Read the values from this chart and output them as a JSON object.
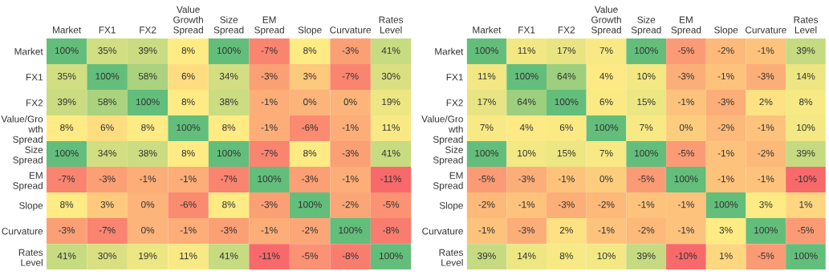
{
  "chart_data": [
    {
      "type": "heatmap",
      "categories": [
        "Market",
        "FX1",
        "FX2",
        "Value\nGrowth\nSpread",
        "Size\nSpread",
        "EM\nSpread",
        "Slope",
        "Curvature",
        "Rates\nLevel"
      ],
      "y_categories": [
        "Market",
        "FX1",
        "FX2",
        "Value/Gro\nwth\nSpread",
        "Size\nSpread",
        "EM\nSpread",
        "Slope",
        "Curvature",
        "Rates\nLevel"
      ],
      "cells": [
        [
          100,
          35,
          39,
          8,
          100,
          -7,
          8,
          -3,
          41
        ],
        [
          35,
          100,
          58,
          6,
          34,
          -3,
          3,
          -7,
          30
        ],
        [
          39,
          58,
          100,
          8,
          38,
          -1,
          0,
          0,
          19
        ],
        [
          8,
          6,
          8,
          100,
          8,
          -1,
          -6,
          -1,
          11
        ],
        [
          100,
          34,
          38,
          8,
          100,
          -7,
          8,
          -3,
          41
        ],
        [
          -7,
          -3,
          -1,
          -1,
          -7,
          100,
          -3,
          -1,
          -11
        ],
        [
          8,
          3,
          0,
          -6,
          8,
          -3,
          100,
          -2,
          -5
        ],
        [
          -3,
          -7,
          0,
          -1,
          -3,
          -1,
          -2,
          100,
          -8
        ],
        [
          41,
          30,
          19,
          11,
          41,
          -11,
          -5,
          -8,
          100
        ]
      ],
      "cell_labels": [
        [
          "100%",
          "35%",
          "39%",
          "8%",
          "100%",
          "-7%",
          "8%",
          "-3%",
          "41%"
        ],
        [
          "35%",
          "100%",
          "58%",
          "6%",
          "34%",
          "-3%",
          "3%",
          "-7%",
          "30%"
        ],
        [
          "39%",
          "58%",
          "100%",
          "8%",
          "38%",
          "-1%",
          "0%",
          "0%",
          "19%"
        ],
        [
          "8%",
          "6%",
          "8%",
          "100%",
          "8%",
          "-1%",
          "-6%",
          "-1%",
          "11%"
        ],
        [
          "100%",
          "34%",
          "38%",
          "8%",
          "100%",
          "-7%",
          "8%",
          "-3%",
          "41%"
        ],
        [
          "-7%",
          "-3%",
          "-1%",
          "-1%",
          "-7%",
          "100%",
          "-3%",
          "-1%",
          "-11%"
        ],
        [
          "8%",
          "3%",
          "0%",
          "-6%",
          "8%",
          "-3%",
          "100%",
          "-2%",
          "-5%"
        ],
        [
          "-3%",
          "-7%",
          "0%",
          "-1%",
          "-3%",
          "-1%",
          "-2%",
          "100%",
          "-8%"
        ],
        [
          "41%",
          "30%",
          "19%",
          "11%",
          "41%",
          "-11%",
          "-5%",
          "-8%",
          "100%"
        ]
      ]
    },
    {
      "type": "heatmap",
      "categories": [
        "Market",
        "FX1",
        "FX2",
        "Value\nGrowth\nSpread",
        "Size\nSpread",
        "EM\nSpread",
        "Slope",
        "Curvature",
        "Rates\nLevel"
      ],
      "y_categories": [
        "Market",
        "FX1",
        "FX2",
        "Value/Gro\nwth\nSpread",
        "Size\nSpread",
        "EM\nSpread",
        "Slope",
        "Curvature",
        "Rates\nLevel"
      ],
      "cells": [
        [
          100,
          11,
          17,
          7,
          100,
          -5,
          -2,
          -1,
          39
        ],
        [
          11,
          100,
          64,
          4,
          10,
          -3,
          -1,
          -3,
          14
        ],
        [
          17,
          64,
          100,
          6,
          15,
          -1,
          -3,
          2,
          8
        ],
        [
          7,
          4,
          6,
          100,
          7,
          0,
          -2,
          -1,
          10
        ],
        [
          100,
          10,
          15,
          7,
          100,
          -5,
          -1,
          -2,
          39
        ],
        [
          -5,
          -3,
          -1,
          0,
          -5,
          100,
          -1,
          -1,
          -10
        ],
        [
          -2,
          -1,
          -3,
          -2,
          -1,
          -1,
          100,
          3,
          1
        ],
        [
          -1,
          -3,
          2,
          -1,
          -2,
          -1,
          3,
          100,
          -5
        ],
        [
          39,
          14,
          8,
          10,
          39,
          -10,
          1,
          -5,
          100
        ]
      ],
      "cell_labels": [
        [
          "100%",
          "11%",
          "17%",
          "7%",
          "100%",
          "-5%",
          "-2%",
          "-1%",
          "39%"
        ],
        [
          "11%",
          "100%",
          "64%",
          "4%",
          "10%",
          "-3%",
          "-1%",
          "-3%",
          "14%"
        ],
        [
          "17%",
          "64%",
          "100%",
          "6%",
          "15%",
          "-1%",
          "-3%",
          "2%",
          "8%"
        ],
        [
          "7%",
          "4%",
          "6%",
          "100%",
          "7%",
          "0%",
          "-2%",
          "-1%",
          "10%"
        ],
        [
          "100%",
          "10%",
          "15%",
          "7%",
          "100%",
          "-5%",
          "-1%",
          "-2%",
          "39%"
        ],
        [
          "-5%",
          "-3%",
          "-1%",
          "0%",
          "-5%",
          "100%",
          "-1%",
          "-1%",
          "-10%"
        ],
        [
          "-2%",
          "-1%",
          "-3%",
          "-2%",
          "-1%",
          "-1%",
          "100%",
          "3%",
          "1%"
        ],
        [
          "-1%",
          "-3%",
          "2%",
          "-1%",
          "-2%",
          "-1%",
          "3%",
          "100%",
          "-5%"
        ],
        [
          "39%",
          "14%",
          "8%",
          "10%",
          "39%",
          "-10%",
          "1%",
          "-5%",
          "100%"
        ]
      ]
    }
  ]
}
